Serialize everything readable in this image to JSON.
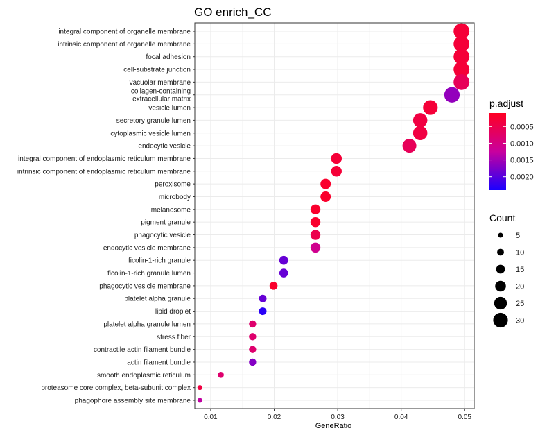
{
  "chart_data": {
    "type": "scatter",
    "title": "GO enrich_CC",
    "xlabel": "GeneRatio",
    "ylabel": "",
    "xlim": [
      0.0075,
      0.0515
    ],
    "x_ticks": [
      0.01,
      0.02,
      0.03,
      0.04,
      0.05
    ],
    "x_tick_labels": [
      "0.01",
      "0.02",
      "0.03",
      "0.04",
      "0.05"
    ],
    "grid": true,
    "legend_position": "right",
    "categories": [
      "integral component of organelle membrane",
      "intrinsic component of organelle membrane",
      "focal adhesion",
      "cell-substrate junction",
      "vacuolar membrane",
      "collagen-containing\nextracellular matrix",
      "vesicle lumen",
      "secretory granule lumen",
      "cytoplasmic vesicle lumen",
      "endocytic vesicle",
      "integral component of endoplasmic reticulum membrane",
      "intrinsic component of endoplasmic reticulum membrane",
      "peroxisome",
      "microbody",
      "melanosome",
      "pigment granule",
      "phagocytic vesicle",
      "endocytic vesicle membrane",
      "ficolin-1-rich granule",
      "ficolin-1-rich granule lumen",
      "phagocytic vesicle membrane",
      "platelet alpha granule",
      "lipid droplet",
      "platelet alpha granule lumen",
      "stress fiber",
      "contractile actin filament bundle",
      "actin filament bundle",
      "smooth endoplasmic reticulum",
      "proteasome core complex, beta-subunit complex",
      "phagophore assembly site membrane"
    ],
    "points": [
      {
        "x": 0.0495,
        "count": 33,
        "p_adjust": 0.0003
      },
      {
        "x": 0.0495,
        "count": 33,
        "p_adjust": 0.0003
      },
      {
        "x": 0.0495,
        "count": 33,
        "p_adjust": 0.0003
      },
      {
        "x": 0.0495,
        "count": 33,
        "p_adjust": 0.0003
      },
      {
        "x": 0.0495,
        "count": 33,
        "p_adjust": 0.0006
      },
      {
        "x": 0.048,
        "count": 32,
        "p_adjust": 0.0016
      },
      {
        "x": 0.0446,
        "count": 30,
        "p_adjust": 0.0003
      },
      {
        "x": 0.043,
        "count": 29,
        "p_adjust": 0.0004
      },
      {
        "x": 0.043,
        "count": 29,
        "p_adjust": 0.0004
      },
      {
        "x": 0.0413,
        "count": 28,
        "p_adjust": 0.0006
      },
      {
        "x": 0.0298,
        "count": 20,
        "p_adjust": 0.0003
      },
      {
        "x": 0.0298,
        "count": 20,
        "p_adjust": 0.0003
      },
      {
        "x": 0.0281,
        "count": 19,
        "p_adjust": 0.0002
      },
      {
        "x": 0.0281,
        "count": 19,
        "p_adjust": 0.0002
      },
      {
        "x": 0.0265,
        "count": 18,
        "p_adjust": 0.0002
      },
      {
        "x": 0.0265,
        "count": 18,
        "p_adjust": 0.0002
      },
      {
        "x": 0.0265,
        "count": 18,
        "p_adjust": 0.0005
      },
      {
        "x": 0.0265,
        "count": 18,
        "p_adjust": 0.0011
      },
      {
        "x": 0.0215,
        "count": 15,
        "p_adjust": 0.0019
      },
      {
        "x": 0.0215,
        "count": 15,
        "p_adjust": 0.0019
      },
      {
        "x": 0.0199,
        "count": 13,
        "p_adjust": 0.0002
      },
      {
        "x": 0.0182,
        "count": 12,
        "p_adjust": 0.0019
      },
      {
        "x": 0.0182,
        "count": 12,
        "p_adjust": 0.0023
      },
      {
        "x": 0.0166,
        "count": 11,
        "p_adjust": 0.0008
      },
      {
        "x": 0.0166,
        "count": 11,
        "p_adjust": 0.0008
      },
      {
        "x": 0.0166,
        "count": 11,
        "p_adjust": 0.0008
      },
      {
        "x": 0.0166,
        "count": 11,
        "p_adjust": 0.0017
      },
      {
        "x": 0.0116,
        "count": 8,
        "p_adjust": 0.0008
      },
      {
        "x": 0.0083,
        "count": 5,
        "p_adjust": 0.0004
      },
      {
        "x": 0.0083,
        "count": 5,
        "p_adjust": 0.0013
      }
    ],
    "color_legend": {
      "title": "p.adjust",
      "range": [
        0.0001,
        0.0024
      ],
      "ticks": [
        0.0005,
        0.001,
        0.0015,
        0.002
      ],
      "tick_labels": [
        "0.0005",
        "0.0010",
        "0.0015",
        "0.0020"
      ],
      "low_color": "#ff0022",
      "mid_color": "#c8009e",
      "high_color": "#1a00ff"
    },
    "size_legend": {
      "title": "Count",
      "values": [
        5,
        10,
        15,
        20,
        25,
        30
      ],
      "labels": [
        "5",
        "10",
        "15",
        "20",
        "25",
        "30"
      ]
    }
  }
}
